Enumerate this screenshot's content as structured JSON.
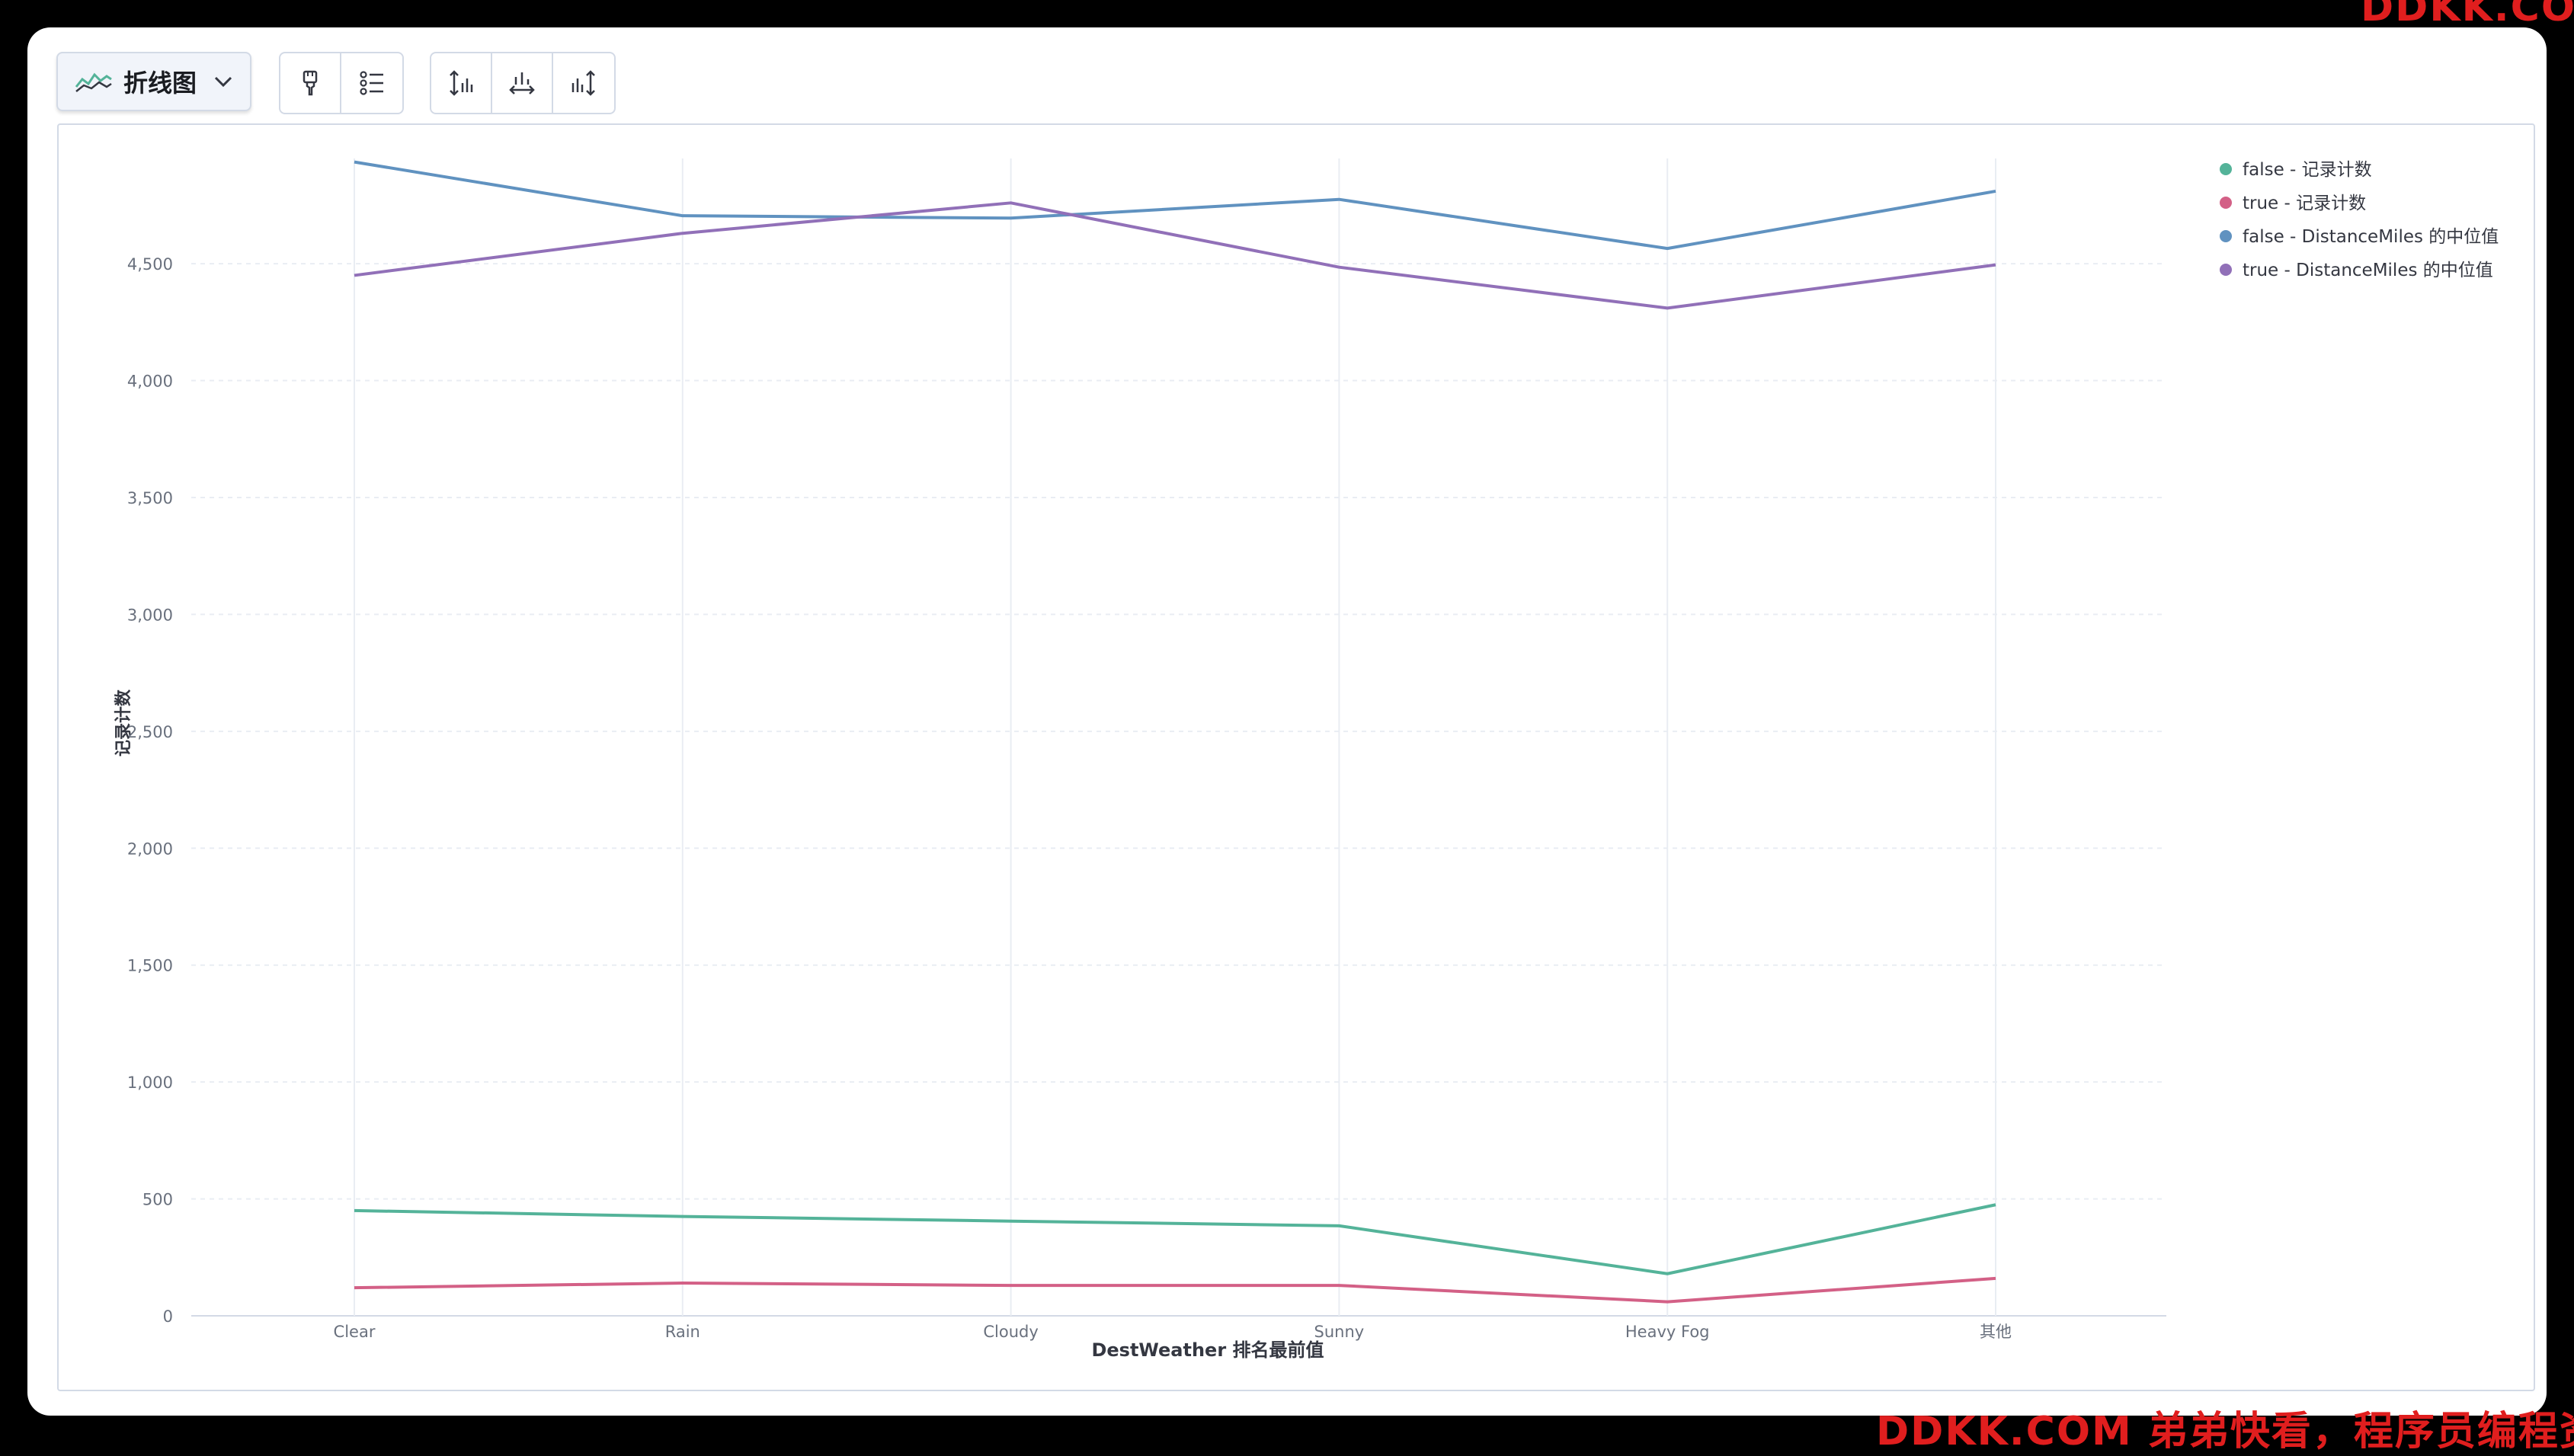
{
  "toolbar": {
    "chart_type_label": "折线图"
  },
  "watermarks": {
    "top_right": "DDKK.COM",
    "bottom": "DDKK.COM 弟弟快看，程序员编程资料站"
  },
  "colors": {
    "false_count": "#54b399",
    "true_count": "#d36086",
    "false_distance": "#6092c0",
    "true_distance": "#9170b8"
  },
  "chart_data": {
    "type": "line",
    "xlabel": "DestWeather 排名最前值",
    "ylabel": "记录计数",
    "categories": [
      "Clear",
      "Rain",
      "Cloudy",
      "Sunny",
      "Heavy Fog",
      "其他"
    ],
    "ylim": [
      0,
      4950
    ],
    "yticks": [
      0,
      500,
      1000,
      1500,
      2000,
      2500,
      3000,
      3500,
      4000,
      4500
    ],
    "ytick_labels": [
      "0",
      "500",
      "1,000",
      "1,500",
      "2,000",
      "2,500",
      "3,000",
      "3,500",
      "4,000",
      "4,500"
    ],
    "grid": true,
    "legend_position": "top-right",
    "series": [
      {
        "name": "false - 记录计数",
        "color": "#54b399",
        "values": [
          450,
          425,
          405,
          385,
          180,
          475
        ]
      },
      {
        "name": "true - 记录计数",
        "color": "#d36086",
        "values": [
          120,
          140,
          130,
          130,
          60,
          160
        ]
      },
      {
        "name": "false - DistanceMiles 的中位值",
        "color": "#6092c0",
        "values": [
          4935,
          4705,
          4695,
          4775,
          4565,
          4810
        ]
      },
      {
        "name": "true - DistanceMiles 的中位值",
        "color": "#9170b8",
        "values": [
          4450,
          4630,
          4760,
          4485,
          4310,
          4495
        ]
      }
    ]
  }
}
